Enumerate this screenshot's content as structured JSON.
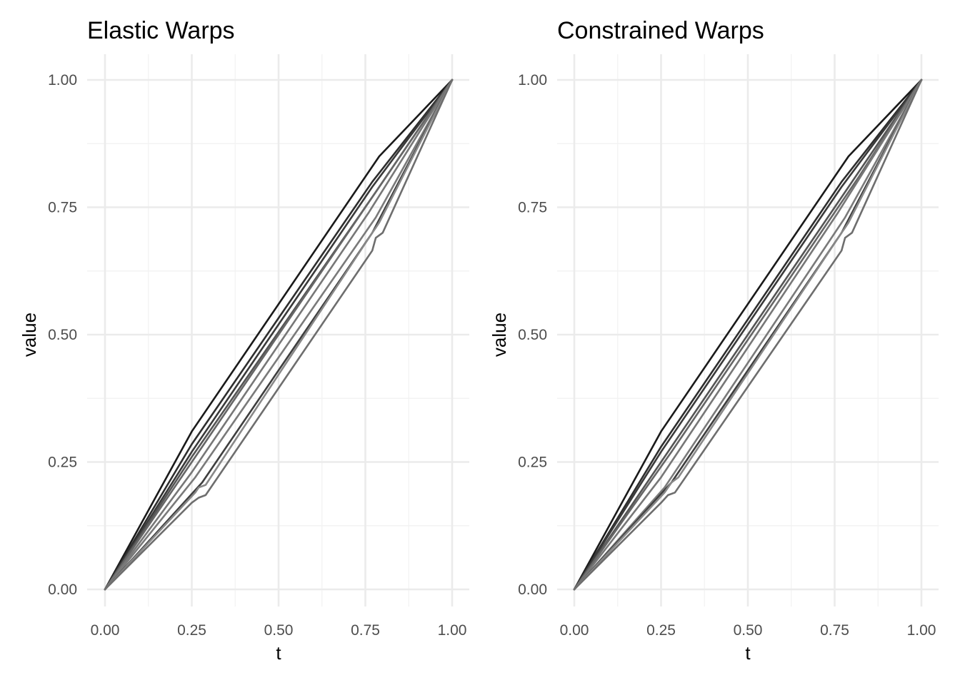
{
  "chart_data": [
    {
      "type": "line",
      "title": "Elastic Warps",
      "xlabel": "t",
      "ylabel": "value",
      "xlim": [
        0,
        1
      ],
      "ylim": [
        0,
        1
      ],
      "xticks": [
        "0.00",
        "0.25",
        "0.50",
        "0.75",
        "1.00"
      ],
      "yticks": [
        "0.00",
        "0.25",
        "0.50",
        "0.75",
        "1.00"
      ],
      "grid": true,
      "legend": "none",
      "series": [
        {
          "color": "#1a1a1a",
          "x": [
            0,
            0.25,
            0.79,
            1
          ],
          "y": [
            0,
            0.31,
            0.85,
            1
          ]
        },
        {
          "color": "#2e2e2e",
          "x": [
            0,
            0.25,
            0.77,
            1
          ],
          "y": [
            0,
            0.285,
            0.8,
            1
          ]
        },
        {
          "color": "#3a3a3a",
          "x": [
            0,
            0.25,
            0.77,
            1
          ],
          "y": [
            0,
            0.27,
            0.79,
            1
          ]
        },
        {
          "color": "#555555",
          "x": [
            0,
            0.25,
            0.78,
            1
          ],
          "y": [
            0,
            0.26,
            0.78,
            1
          ]
        },
        {
          "color": "#666666",
          "x": [
            0,
            0.28,
            0.82,
            1
          ],
          "y": [
            0,
            0.28,
            0.82,
            1
          ]
        },
        {
          "color": "#777777",
          "x": [
            0,
            0.25,
            0.76,
            1
          ],
          "y": [
            0,
            0.23,
            0.74,
            1
          ]
        },
        {
          "color": "#7a7a7a",
          "x": [
            0,
            0.26,
            0.78,
            1
          ],
          "y": [
            0,
            0.22,
            0.73,
            1
          ]
        },
        {
          "color": "#3e3e3e",
          "x": [
            0,
            0.28,
            0.77,
            1
          ],
          "y": [
            0,
            0.21,
            0.7,
            1
          ]
        },
        {
          "color": "#888888",
          "x": [
            0,
            0.26,
            0.27,
            0.29,
            0.77,
            0.78,
            0.79,
            1
          ],
          "y": [
            0,
            0.19,
            0.2,
            0.205,
            0.7,
            0.71,
            0.72,
            1
          ]
        },
        {
          "color": "#6e6e6e",
          "x": [
            0,
            0.25,
            0.27,
            0.29,
            0.77,
            0.78,
            0.8,
            1
          ],
          "y": [
            0,
            0.17,
            0.18,
            0.185,
            0.665,
            0.69,
            0.7,
            1
          ]
        }
      ]
    },
    {
      "type": "line",
      "title": "Constrained Warps",
      "xlabel": "t",
      "ylabel": "value",
      "xlim": [
        0,
        1
      ],
      "ylim": [
        0,
        1
      ],
      "xticks": [
        "0.00",
        "0.25",
        "0.50",
        "0.75",
        "1.00"
      ],
      "yticks": [
        "0.00",
        "0.25",
        "0.50",
        "0.75",
        "1.00"
      ],
      "grid": true,
      "legend": "none",
      "series": [
        {
          "color": "#1a1a1a",
          "x": [
            0,
            0.25,
            0.79,
            1
          ],
          "y": [
            0,
            0.31,
            0.85,
            1
          ]
        },
        {
          "color": "#2e2e2e",
          "x": [
            0,
            0.25,
            0.77,
            1
          ],
          "y": [
            0,
            0.28,
            0.8,
            1
          ]
        },
        {
          "color": "#3a3a3a",
          "x": [
            0,
            0.25,
            0.77,
            1
          ],
          "y": [
            0,
            0.27,
            0.79,
            1
          ]
        },
        {
          "color": "#555555",
          "x": [
            0,
            0.25,
            0.78,
            1
          ],
          "y": [
            0,
            0.25,
            0.78,
            1
          ]
        },
        {
          "color": "#666666",
          "x": [
            0,
            0.28,
            0.82,
            1
          ],
          "y": [
            0,
            0.27,
            0.81,
            1
          ]
        },
        {
          "color": "#777777",
          "x": [
            0,
            0.25,
            0.76,
            1
          ],
          "y": [
            0,
            0.22,
            0.74,
            1
          ]
        },
        {
          "color": "#7a7a7a",
          "x": [
            0,
            0.26,
            0.78,
            1
          ],
          "y": [
            0,
            0.2,
            0.73,
            1
          ]
        },
        {
          "color": "#3e3e3e",
          "x": [
            0,
            0.28,
            0.77,
            1
          ],
          "y": [
            0,
            0.21,
            0.7,
            1
          ]
        },
        {
          "color": "#888888",
          "x": [
            0,
            0.26,
            0.28,
            0.3,
            0.77,
            0.78,
            0.79,
            1
          ],
          "y": [
            0,
            0.19,
            0.21,
            0.22,
            0.7,
            0.71,
            0.72,
            1
          ]
        },
        {
          "color": "#6e6e6e",
          "x": [
            0,
            0.25,
            0.27,
            0.29,
            0.77,
            0.78,
            0.8,
            1
          ],
          "y": [
            0,
            0.17,
            0.185,
            0.19,
            0.665,
            0.69,
            0.7,
            1
          ]
        }
      ]
    }
  ]
}
